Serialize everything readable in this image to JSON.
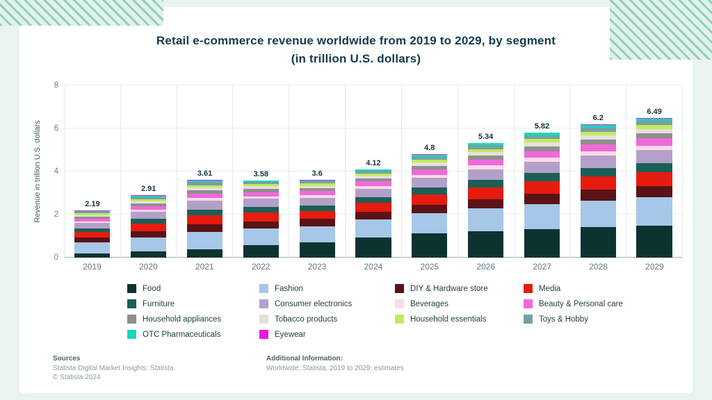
{
  "page": {
    "title": "Retail e-commerce revenue worldwide from 2019 to 2029, by segment (in trillion U.S. dollars)"
  },
  "footer": {
    "sources_heading": "Sources",
    "sources_line1": "Statista Digital Market Insights: Statista",
    "sources_line2": "© Statista 2024",
    "additional_heading": "Additional Information:",
    "additional_line1": "Worldwide; Statista; 2019 to 2029; estimates"
  },
  "chart_data": {
    "type": "bar",
    "stacked": true,
    "title": "Retail e-commerce revenue worldwide from 2019 to 2029, by segment (in trillion U.S. dollars)",
    "xlabel": "",
    "ylabel": "Revenue in trillion U.S. dollars",
    "ylim": [
      0,
      8
    ],
    "yticks": [
      0,
      2,
      4,
      6,
      8
    ],
    "grid": true,
    "legend_position": "bottom",
    "categories": [
      "2019",
      "2020",
      "2021",
      "2022",
      "2023",
      "2024",
      "2025",
      "2026",
      "2027",
      "2028",
      "2029"
    ],
    "totals": [
      "2.19",
      "2.91",
      "3.61",
      "3.58",
      "3.6",
      "4.12",
      "4.8",
      "5.34",
      "5.82",
      "6.2",
      "6.49"
    ],
    "series": [
      {
        "name": "Food",
        "color": "#0d3331",
        "values": [
          0.18,
          0.28,
          0.38,
          0.58,
          0.72,
          0.95,
          1.12,
          1.22,
          1.32,
          1.42,
          1.5
        ]
      },
      {
        "name": "Fashion",
        "color": "#a6c7e7",
        "values": [
          0.52,
          0.66,
          0.8,
          0.76,
          0.74,
          0.82,
          0.94,
          1.06,
          1.16,
          1.24,
          1.3
        ]
      },
      {
        "name": "DIY & Hardware store",
        "color": "#5a1317",
        "values": [
          0.24,
          0.3,
          0.37,
          0.35,
          0.34,
          0.36,
          0.4,
          0.44,
          0.48,
          0.5,
          0.52
        ]
      },
      {
        "name": "Media",
        "color": "#e51c0f",
        "values": [
          0.26,
          0.34,
          0.42,
          0.4,
          0.38,
          0.42,
          0.48,
          0.54,
          0.58,
          0.62,
          0.65
        ]
      },
      {
        "name": "Furniture",
        "color": "#1d5e55",
        "values": [
          0.16,
          0.22,
          0.27,
          0.26,
          0.25,
          0.27,
          0.31,
          0.35,
          0.38,
          0.4,
          0.42
        ]
      },
      {
        "name": "Consumer electronics",
        "color": "#b3a0c9",
        "values": [
          0.24,
          0.32,
          0.4,
          0.38,
          0.36,
          0.39,
          0.45,
          0.5,
          0.54,
          0.57,
          0.6
        ]
      },
      {
        "name": "Beverages",
        "color": "#fadbe6",
        "values": [
          0.08,
          0.1,
          0.13,
          0.12,
          0.12,
          0.13,
          0.15,
          0.17,
          0.19,
          0.2,
          0.21
        ]
      },
      {
        "name": "Beauty & Personal care",
        "color": "#ef6ad8",
        "values": [
          0.12,
          0.16,
          0.2,
          0.19,
          0.18,
          0.2,
          0.24,
          0.27,
          0.3,
          0.32,
          0.34
        ]
      },
      {
        "name": "Household appliances",
        "color": "#8e8e8e",
        "values": [
          0.1,
          0.13,
          0.16,
          0.15,
          0.14,
          0.15,
          0.18,
          0.2,
          0.22,
          0.23,
          0.24
        ]
      },
      {
        "name": "Tobacco products",
        "color": "#e3e1da",
        "values": [
          0.08,
          0.1,
          0.13,
          0.12,
          0.11,
          0.12,
          0.14,
          0.16,
          0.17,
          0.18,
          0.19
        ]
      },
      {
        "name": "Household essentials",
        "color": "#c4e95e",
        "values": [
          0.07,
          0.09,
          0.11,
          0.1,
          0.1,
          0.11,
          0.13,
          0.14,
          0.16,
          0.17,
          0.18
        ]
      },
      {
        "name": "Toys & Hobby",
        "color": "#73a2a0",
        "values": [
          0.08,
          0.11,
          0.14,
          0.1,
          0.1,
          0.12,
          0.15,
          0.17,
          0.19,
          0.2,
          0.21
        ]
      },
      {
        "name": "OTC Pharmaceuticals",
        "color": "#16d8bf",
        "values": [
          0.04,
          0.06,
          0.07,
          0.06,
          0.05,
          0.06,
          0.08,
          0.09,
          0.1,
          0.11,
          0.09
        ]
      },
      {
        "name": "Eyewear",
        "color": "#ef15dd",
        "values": [
          0.02,
          0.04,
          0.03,
          0.01,
          0.01,
          0.02,
          0.03,
          0.03,
          0.03,
          0.04,
          0.04
        ]
      }
    ]
  }
}
